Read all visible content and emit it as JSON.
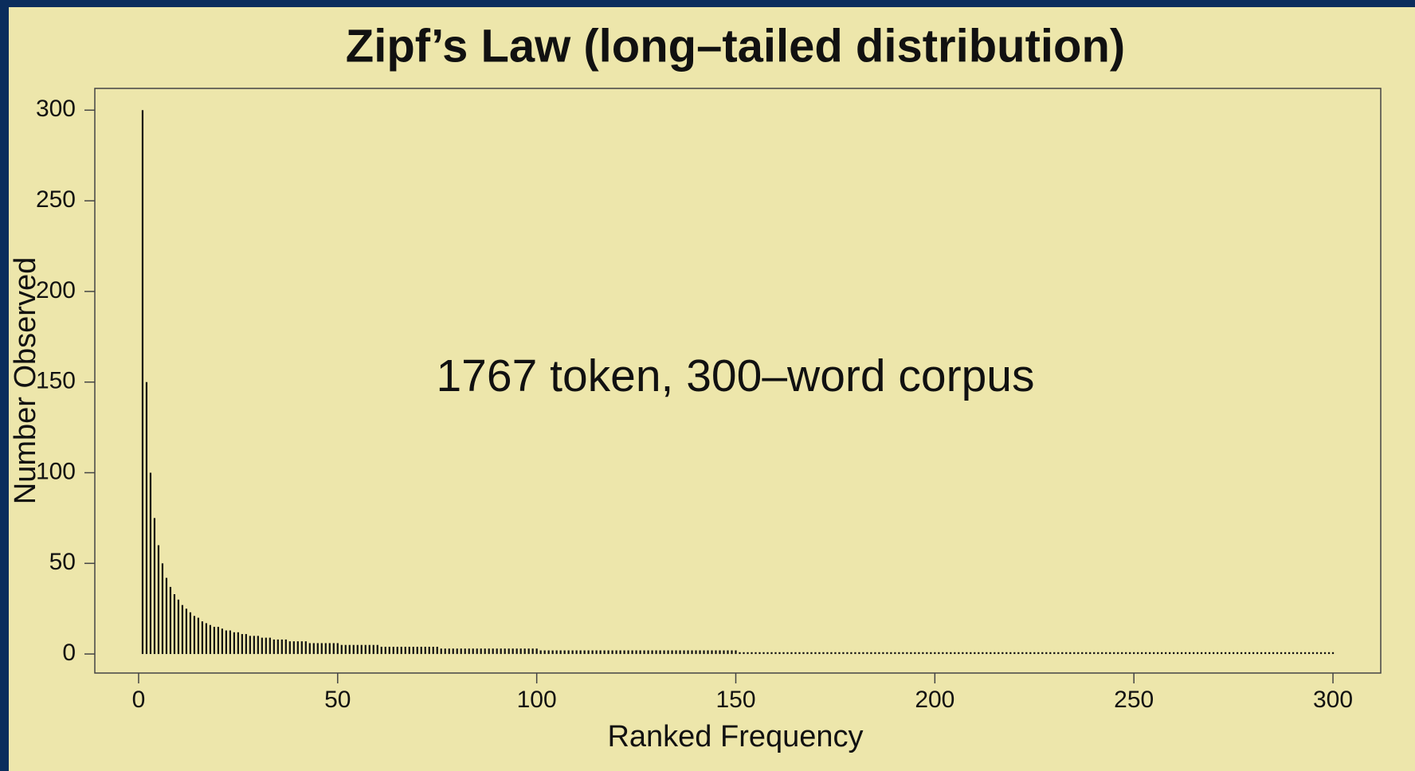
{
  "chart_data": {
    "type": "bar",
    "title": "Zipf’s Law (long–tailed distribution)",
    "annotation": "1767 token, 300–word corpus",
    "x_label": "Ranked Frequency",
    "y_label": "Number Observed",
    "color": "#111111",
    "xlim": [
      -11,
      312
    ],
    "xticks": [
      0,
      50,
      100,
      150,
      200,
      250,
      300
    ],
    "ylim": [
      -10.5,
      312
    ],
    "yticks": [
      0,
      50,
      100,
      150,
      200,
      250,
      300
    ],
    "values": [
      300,
      150,
      100,
      75,
      60,
      50,
      42,
      37,
      33,
      30,
      27,
      25,
      23,
      21,
      20,
      18,
      17,
      16,
      15,
      15,
      14,
      13,
      13,
      12,
      12,
      11,
      11,
      10,
      10,
      10,
      9,
      9,
      9,
      8,
      8,
      8,
      8,
      7,
      7,
      7,
      7,
      7,
      6,
      6,
      6,
      6,
      6,
      6,
      6,
      6,
      5,
      5,
      5,
      5,
      5,
      5,
      5,
      5,
      5,
      5,
      4,
      4,
      4,
      4,
      4,
      4,
      4,
      4,
      4,
      4,
      4,
      4,
      4,
      4,
      4,
      3,
      3,
      3,
      3,
      3,
      3,
      3,
      3,
      3,
      3,
      3,
      3,
      3,
      3,
      3,
      3,
      3,
      3,
      3,
      3,
      3,
      3,
      3,
      3,
      3,
      2,
      2,
      2,
      2,
      2,
      2,
      2,
      2,
      2,
      2,
      2,
      2,
      2,
      2,
      2,
      2,
      2,
      2,
      2,
      2,
      2,
      2,
      2,
      2,
      2,
      2,
      2,
      2,
      2,
      2,
      2,
      2,
      2,
      2,
      2,
      2,
      2,
      2,
      2,
      2,
      2,
      2,
      2,
      2,
      2,
      2,
      2,
      2,
      2,
      2,
      1,
      1,
      1,
      1,
      1,
      1,
      1,
      1,
      1,
      1,
      1,
      1,
      1,
      1,
      1,
      1,
      1,
      1,
      1,
      1,
      1,
      1,
      1,
      1,
      1,
      1,
      1,
      1,
      1,
      1,
      1,
      1,
      1,
      1,
      1,
      1,
      1,
      1,
      1,
      1,
      1,
      1,
      1,
      1,
      1,
      1,
      1,
      1,
      1,
      1,
      1,
      1,
      1,
      1,
      1,
      1,
      1,
      1,
      1,
      1,
      1,
      1,
      1,
      1,
      1,
      1,
      1,
      1,
      1,
      1,
      1,
      1,
      1,
      1,
      1,
      1,
      1,
      1,
      1,
      1,
      1,
      1,
      1,
      1,
      1,
      1,
      1,
      1,
      1,
      1,
      1,
      1,
      1,
      1,
      1,
      1,
      1,
      1,
      1,
      1,
      1,
      1,
      1,
      1,
      1,
      1,
      1,
      1,
      1,
      1,
      1,
      1,
      1,
      1,
      1,
      1,
      1,
      1,
      1,
      1,
      1,
      1,
      1,
      1,
      1,
      1,
      1,
      1,
      1,
      1,
      1,
      1,
      1,
      1,
      1,
      1,
      1,
      1,
      1,
      1,
      1,
      1,
      1,
      1,
      1,
      1,
      1,
      1,
      1,
      1
    ]
  }
}
